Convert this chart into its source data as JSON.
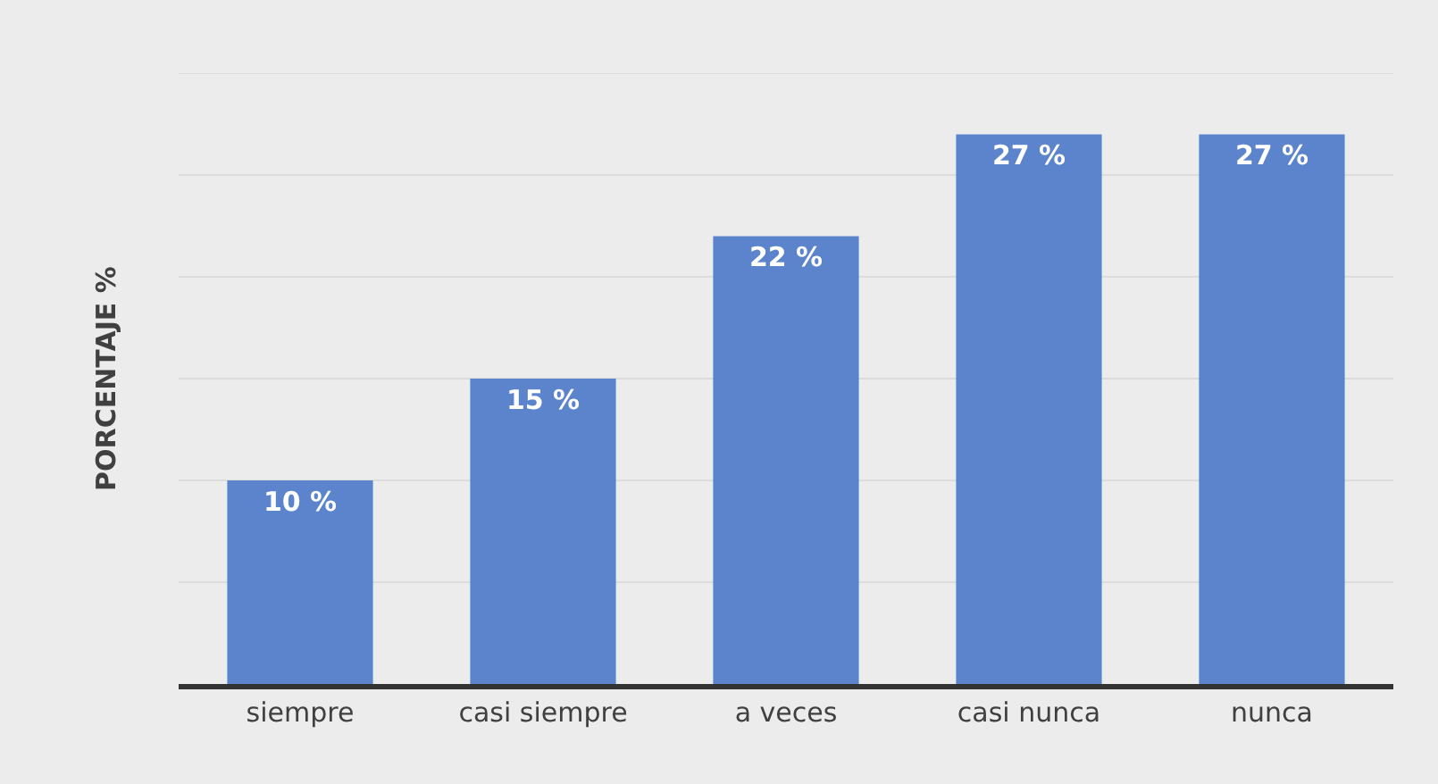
{
  "chart_data": {
    "type": "bar",
    "ylabel": "PORCENTAJE %",
    "categories": [
      "siempre",
      "casi siempre",
      "a veces",
      "casi nunca",
      "nunca"
    ],
    "values": [
      10,
      15,
      22,
      27,
      27
    ],
    "value_labels": [
      "10 %",
      "15 %",
      "22 %",
      "27 %",
      "27 %"
    ],
    "color": "#5b84cc",
    "ylim": [
      0,
      30
    ],
    "yticks": [
      {
        "value": 0,
        "label": null
      },
      {
        "value": 5,
        "label": null
      },
      {
        "value": 10,
        "label": null
      },
      {
        "value": 15,
        "label": null
      },
      {
        "value": 20,
        "label": null
      },
      {
        "value": 25,
        "label": null
      }
    ],
    "grid": "y",
    "tick_labels": "x",
    "legend": false
  }
}
